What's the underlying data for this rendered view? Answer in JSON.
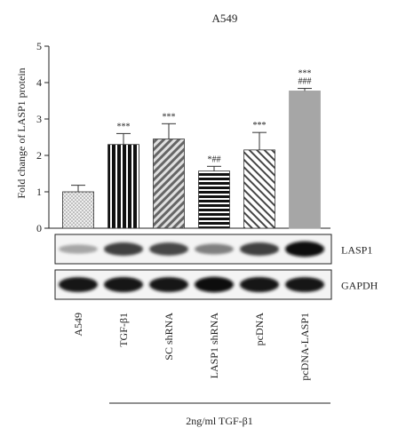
{
  "chart_data": {
    "type": "bar",
    "title": "A549",
    "ylabel": "Fold change of LASP1 protein",
    "ylim": [
      0,
      5
    ],
    "yticks": [
      0,
      1,
      2,
      3,
      4,
      5
    ],
    "categories": [
      "A549",
      "TGF-β1",
      "SC shRNA",
      "LASP1 shRNA",
      "pcDNA",
      "pcDNA-LASP1"
    ],
    "values": [
      1.0,
      2.3,
      2.45,
      1.57,
      2.15,
      3.77
    ],
    "errors": [
      0.18,
      0.3,
      0.42,
      0.13,
      0.48,
      0.07
    ],
    "significance": [
      "",
      "***",
      "***",
      "*##",
      "***",
      "***\n###"
    ],
    "fills": [
      "dotted",
      "vertical-stripes",
      "diagonal-stripes",
      "horizontal-stripes",
      "back-diagonal-stripes",
      "solid-gray"
    ],
    "group_label": "2ng/ml TGF-β1",
    "grid": false
  },
  "blots": [
    {
      "label": "LASP1",
      "intensities": [
        0.35,
        0.75,
        0.72,
        0.5,
        0.75,
        0.95
      ]
    },
    {
      "label": "GAPDH",
      "intensities": [
        0.9,
        0.92,
        0.9,
        0.95,
        0.92,
        0.9
      ]
    }
  ]
}
